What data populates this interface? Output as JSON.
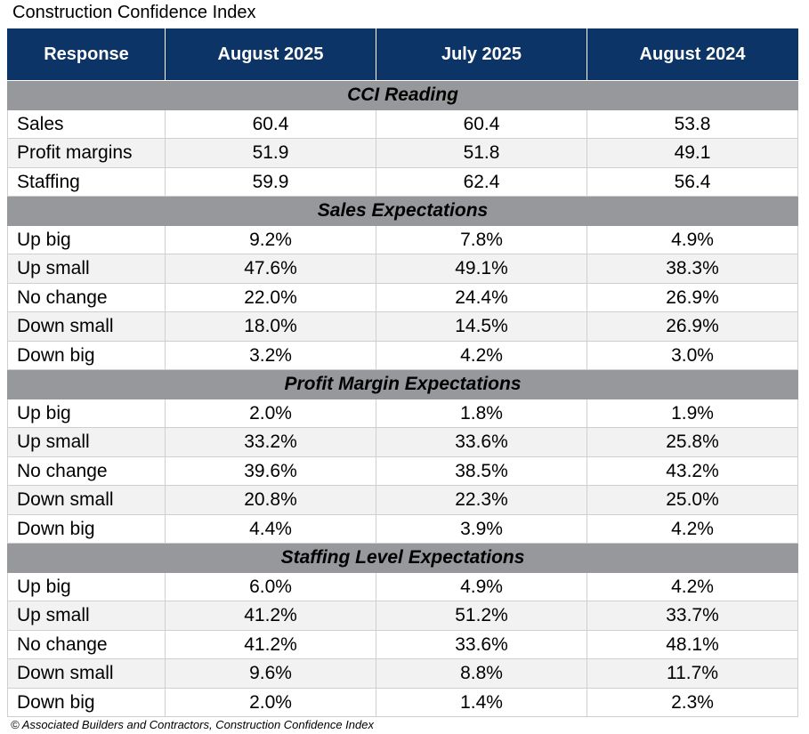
{
  "title": "Construction Confidence Index",
  "table": {
    "header": [
      "Response",
      "August 2025",
      "July 2025",
      "August 2024"
    ],
    "sections": [
      {
        "title": "CCI Reading",
        "rows": [
          [
            "Sales",
            "60.4",
            "60.4",
            "53.8"
          ],
          [
            "Profit margins",
            "51.9",
            "51.8",
            "49.1"
          ],
          [
            "Staffing",
            "59.9",
            "62.4",
            "56.4"
          ]
        ]
      },
      {
        "title": "Sales Expectations",
        "rows": [
          [
            "Up big",
            "9.2%",
            "7.8%",
            "4.9%"
          ],
          [
            "Up small",
            "47.6%",
            "49.1%",
            "38.3%"
          ],
          [
            "No change",
            "22.0%",
            "24.4%",
            "26.9%"
          ],
          [
            "Down small",
            "18.0%",
            "14.5%",
            "26.9%"
          ],
          [
            "Down big",
            "3.2%",
            "4.2%",
            "3.0%"
          ]
        ]
      },
      {
        "title": "Profit Margin Expectations",
        "rows": [
          [
            "Up big",
            "2.0%",
            "1.8%",
            "1.9%"
          ],
          [
            "Up small",
            "33.2%",
            "33.6%",
            "25.8%"
          ],
          [
            "No change",
            "39.6%",
            "38.5%",
            "43.2%"
          ],
          [
            "Down small",
            "20.8%",
            "22.3%",
            "25.0%"
          ],
          [
            "Down big",
            "4.4%",
            "3.9%",
            "4.2%"
          ]
        ]
      },
      {
        "title": "Staffing Level Expectations",
        "rows": [
          [
            "Up big",
            "6.0%",
            "4.9%",
            "4.2%"
          ],
          [
            "Up small",
            "41.2%",
            "51.2%",
            "33.7%"
          ],
          [
            "No change",
            "41.2%",
            "33.6%",
            "48.1%"
          ],
          [
            "Down small",
            "9.6%",
            "8.8%",
            "11.7%"
          ],
          [
            "Down big",
            "2.0%",
            "1.4%",
            "2.3%"
          ]
        ]
      }
    ]
  },
  "footer": "© Associated Builders and Contractors, Construction Confidence Index"
}
